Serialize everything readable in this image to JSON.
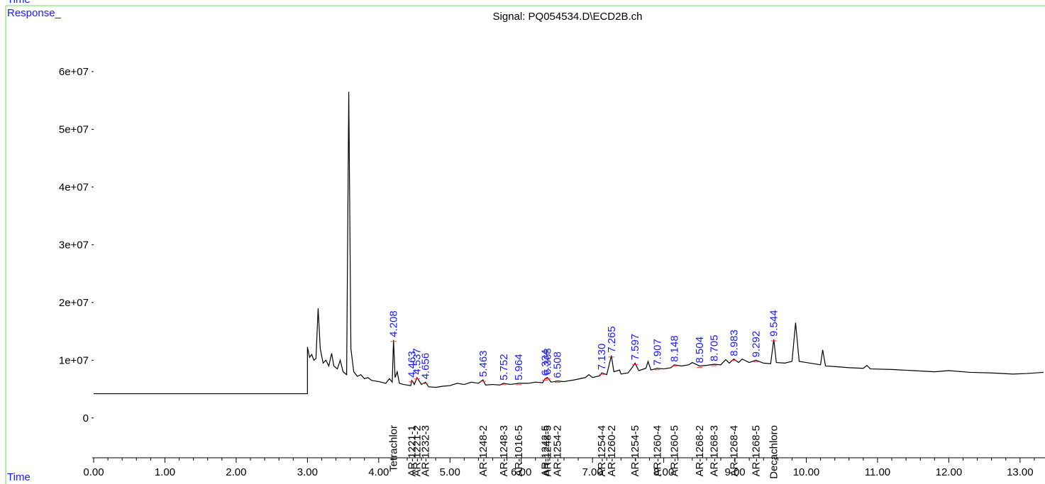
{
  "chart_data": {
    "type": "line",
    "top_label": "Time",
    "title": "Signal: PQ054534.D\\ECD2B.ch",
    "xlabel": "Time",
    "ylabel": "Response_",
    "xlim": [
      0,
      13.33
    ],
    "ylim": [
      -6900000,
      68100000
    ],
    "xticks": [
      {
        "value": 0,
        "label": "0.00"
      },
      {
        "value": 1,
        "label": "1.00"
      },
      {
        "value": 2,
        "label": "2.00"
      },
      {
        "value": 3,
        "label": "3.00"
      },
      {
        "value": 4,
        "label": "4.00"
      },
      {
        "value": 5,
        "label": "5.00"
      },
      {
        "value": 6,
        "label": "6.00"
      },
      {
        "value": 7,
        "label": "7.00"
      },
      {
        "value": 8,
        "label": "8.00"
      },
      {
        "value": 9,
        "label": "9.00"
      },
      {
        "value": 10,
        "label": "10.00"
      },
      {
        "value": 11,
        "label": "11.00"
      },
      {
        "value": 12,
        "label": "12.00"
      },
      {
        "value": 13,
        "label": "13.00"
      }
    ],
    "yticks": [
      0,
      {
        "value": 10000000,
        "label": "1e+07"
      },
      {
        "value": 20000000,
        "label": "2e+07"
      },
      {
        "value": 30000000,
        "label": "3e+07"
      },
      {
        "value": 40000000,
        "label": "4e+07"
      },
      {
        "value": 50000000,
        "label": "5e+07"
      },
      {
        "value": 60000000,
        "label": "6e+07"
      }
    ],
    "series": [
      {
        "color": "#000000",
        "x": [
          0,
          3.0,
          3.0,
          3.03,
          3.06,
          3.09,
          3.12,
          3.15,
          3.18,
          3.22,
          3.26,
          3.3,
          3.34,
          3.37,
          3.42,
          3.46,
          3.5,
          3.55,
          3.58,
          3.61,
          3.65,
          3.7,
          3.75,
          3.8,
          3.85,
          3.9,
          4.0,
          4.1,
          4.15,
          4.19,
          4.208,
          4.23,
          4.26,
          4.29,
          4.35,
          4.45,
          4.463,
          4.5,
          4.537,
          4.6,
          4.656,
          4.7,
          4.8,
          4.9,
          5.0,
          5.1,
          5.2,
          5.3,
          5.4,
          5.463,
          5.5,
          5.6,
          5.7,
          5.752,
          5.85,
          5.964,
          6.1,
          6.2,
          6.3,
          6.334,
          6.368,
          6.42,
          6.508,
          6.6,
          6.75,
          6.9,
          6.95,
          7.0,
          7.1,
          7.13,
          7.2,
          7.265,
          7.3,
          7.38,
          7.4,
          7.5,
          7.56,
          7.597,
          7.65,
          7.75,
          7.78,
          7.82,
          7.907,
          8.0,
          8.1,
          8.148,
          8.25,
          8.35,
          8.4,
          8.504,
          8.6,
          8.705,
          8.8,
          8.87,
          8.92,
          8.983,
          9.05,
          9.1,
          9.2,
          9.292,
          9.4,
          9.5,
          9.544,
          9.58,
          9.7,
          9.8,
          9.85,
          9.9,
          10.0,
          10.1,
          10.2,
          10.23,
          10.27,
          10.4,
          10.6,
          10.8,
          10.85,
          10.9,
          11.2,
          11.5,
          11.8,
          12.0,
          12.3,
          12.6,
          12.9,
          13.1,
          13.33
        ],
        "values": [
          4200000,
          4200000,
          12300000,
          10500000,
          11000000,
          10000000,
          10300000,
          19000000,
          12000000,
          9500000,
          10000000,
          9000000,
          11200000,
          9000000,
          8500000,
          10000000,
          8000000,
          7500000,
          56500000,
          12000000,
          8000000,
          7200000,
          7500000,
          6800000,
          7000000,
          6500000,
          6300000,
          6000000,
          6800000,
          6200000,
          13500000,
          7000000,
          8000000,
          6000000,
          5800000,
          5600000,
          6500000,
          5800000,
          7000000,
          5800000,
          6200000,
          5400000,
          5300000,
          5500000,
          5600000,
          6000000,
          5800000,
          6200000,
          6000000,
          6600000,
          5700000,
          5800000,
          5700000,
          6000000,
          5800000,
          6000000,
          6000000,
          6200000,
          6100000,
          6800000,
          7000000,
          6200000,
          6400000,
          6300000,
          6600000,
          7000000,
          7500000,
          7000000,
          7300000,
          7800000,
          7500000,
          10800000,
          8000000,
          8300000,
          7600000,
          7800000,
          8800000,
          9500000,
          8200000,
          8600000,
          9800000,
          8300000,
          8600000,
          8500000,
          8700000,
          9200000,
          9000000,
          9200000,
          9600000,
          9000000,
          9100000,
          9300000,
          9200000,
          10100000,
          9500000,
          10200000,
          9600000,
          10200000,
          9600000,
          10000000,
          9500000,
          9400000,
          13600000,
          9600000,
          9500000,
          9800000,
          16500000,
          9800000,
          9600000,
          9400000,
          9200000,
          11800000,
          9000000,
          8900000,
          8700000,
          8600000,
          9100000,
          8500000,
          8400000,
          8200000,
          8000000,
          8200000,
          7900000,
          7800000,
          7600000,
          7700000,
          7900000
        ]
      }
    ],
    "peak_color": "#1a1aff",
    "peaks": [
      {
        "value": 4.208,
        "label": "4.208"
      },
      {
        "value": 4.463,
        "label": "4.463"
      },
      {
        "value": 4.537,
        "label": "4.537"
      },
      {
        "value": 4.656,
        "label": "4.656"
      },
      {
        "value": 5.463,
        "label": "5.463"
      },
      {
        "value": 5.752,
        "label": "5.752"
      },
      {
        "value": 5.964,
        "label": "5.964"
      },
      {
        "value": 6.334,
        "label": "6.334"
      },
      {
        "value": 6.368,
        "label": "6.368"
      },
      {
        "value": 6.508,
        "label": "6.508"
      },
      {
        "value": 7.13,
        "label": "7.130"
      },
      {
        "value": 7.265,
        "label": "7.265"
      },
      {
        "value": 7.597,
        "label": "7.597"
      },
      {
        "value": 7.907,
        "label": "7.907"
      },
      {
        "value": 8.148,
        "label": "8.148"
      },
      {
        "value": 8.504,
        "label": "8.504"
      },
      {
        "value": 8.705,
        "label": "8.705"
      },
      {
        "value": 8.983,
        "label": "8.983"
      },
      {
        "value": 9.292,
        "label": "9.292"
      },
      {
        "value": 9.544,
        "label": "9.544"
      }
    ],
    "compounds": [
      "Tetrachlor",
      "AR-1221-1",
      "AR-1221-2",
      "AR-1232-3",
      "AR-1248-2",
      "AR-1248-3",
      "AR-1016-5",
      "AR-1242-5",
      "AR-1248-5",
      "AR-1254-2",
      "AR-1254-4",
      "AR-1260-2",
      "AR-1254-5",
      "AR-1260-4",
      "AR-1260-5",
      "AR-1268-2",
      "AR-1268-3",
      "AR-1268-4",
      "AR-1268-5",
      "Decachloro"
    ]
  }
}
